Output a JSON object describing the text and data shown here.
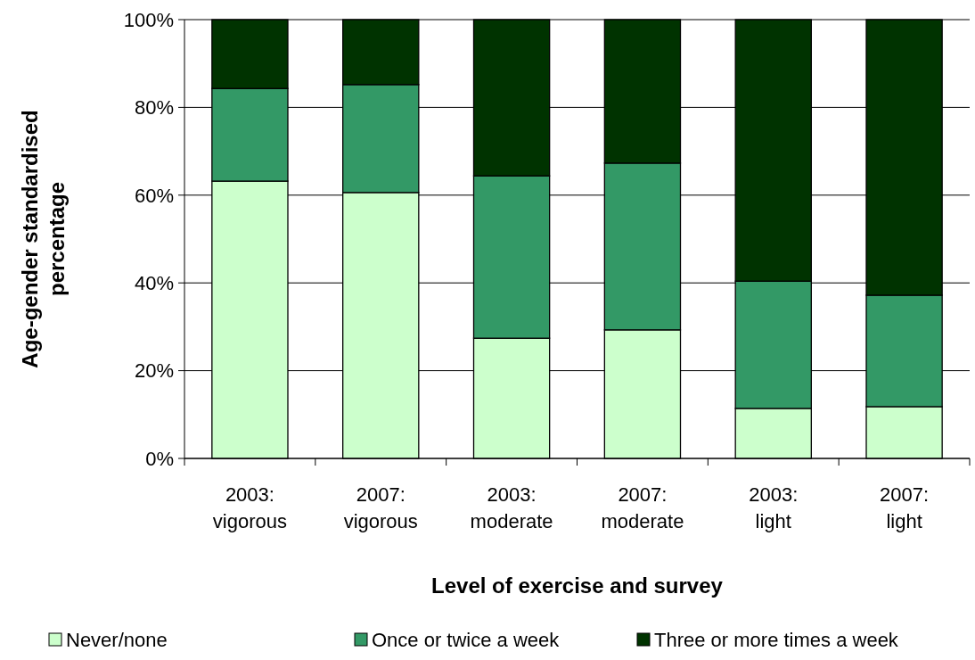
{
  "chart_data": {
    "type": "bar",
    "stacked": true,
    "xlabel": "Level of exercise and survey",
    "ylabel": "Age-gender standardised percentage",
    "categories": [
      "2003: vigorous",
      "2007: vigorous",
      "2003: moderate",
      "2007: moderate",
      "2003: light",
      "2007: light"
    ],
    "series": [
      {
        "name": "Never/none",
        "color": "#ccffcc",
        "values": [
          63.2,
          60.6,
          27.4,
          29.3,
          11.4,
          11.8
        ]
      },
      {
        "name": "Once or twice a week",
        "color": "#339966",
        "values": [
          21.1,
          24.6,
          37.0,
          38.0,
          29.0,
          25.4
        ]
      },
      {
        "name": "Three or more times a week",
        "color": "#003300",
        "values": [
          15.7,
          14.8,
          35.6,
          32.7,
          59.6,
          62.8
        ]
      }
    ],
    "ylim": [
      0,
      100
    ],
    "yticks": [
      {
        "value": 0,
        "label": "0%"
      },
      {
        "value": 20,
        "label": "20%"
      },
      {
        "value": 40,
        "label": "40%"
      },
      {
        "value": 60,
        "label": "60%"
      },
      {
        "value": 80,
        "label": "80%"
      },
      {
        "value": 100,
        "label": "100%"
      }
    ],
    "grid": "y",
    "legend": "bottom"
  }
}
